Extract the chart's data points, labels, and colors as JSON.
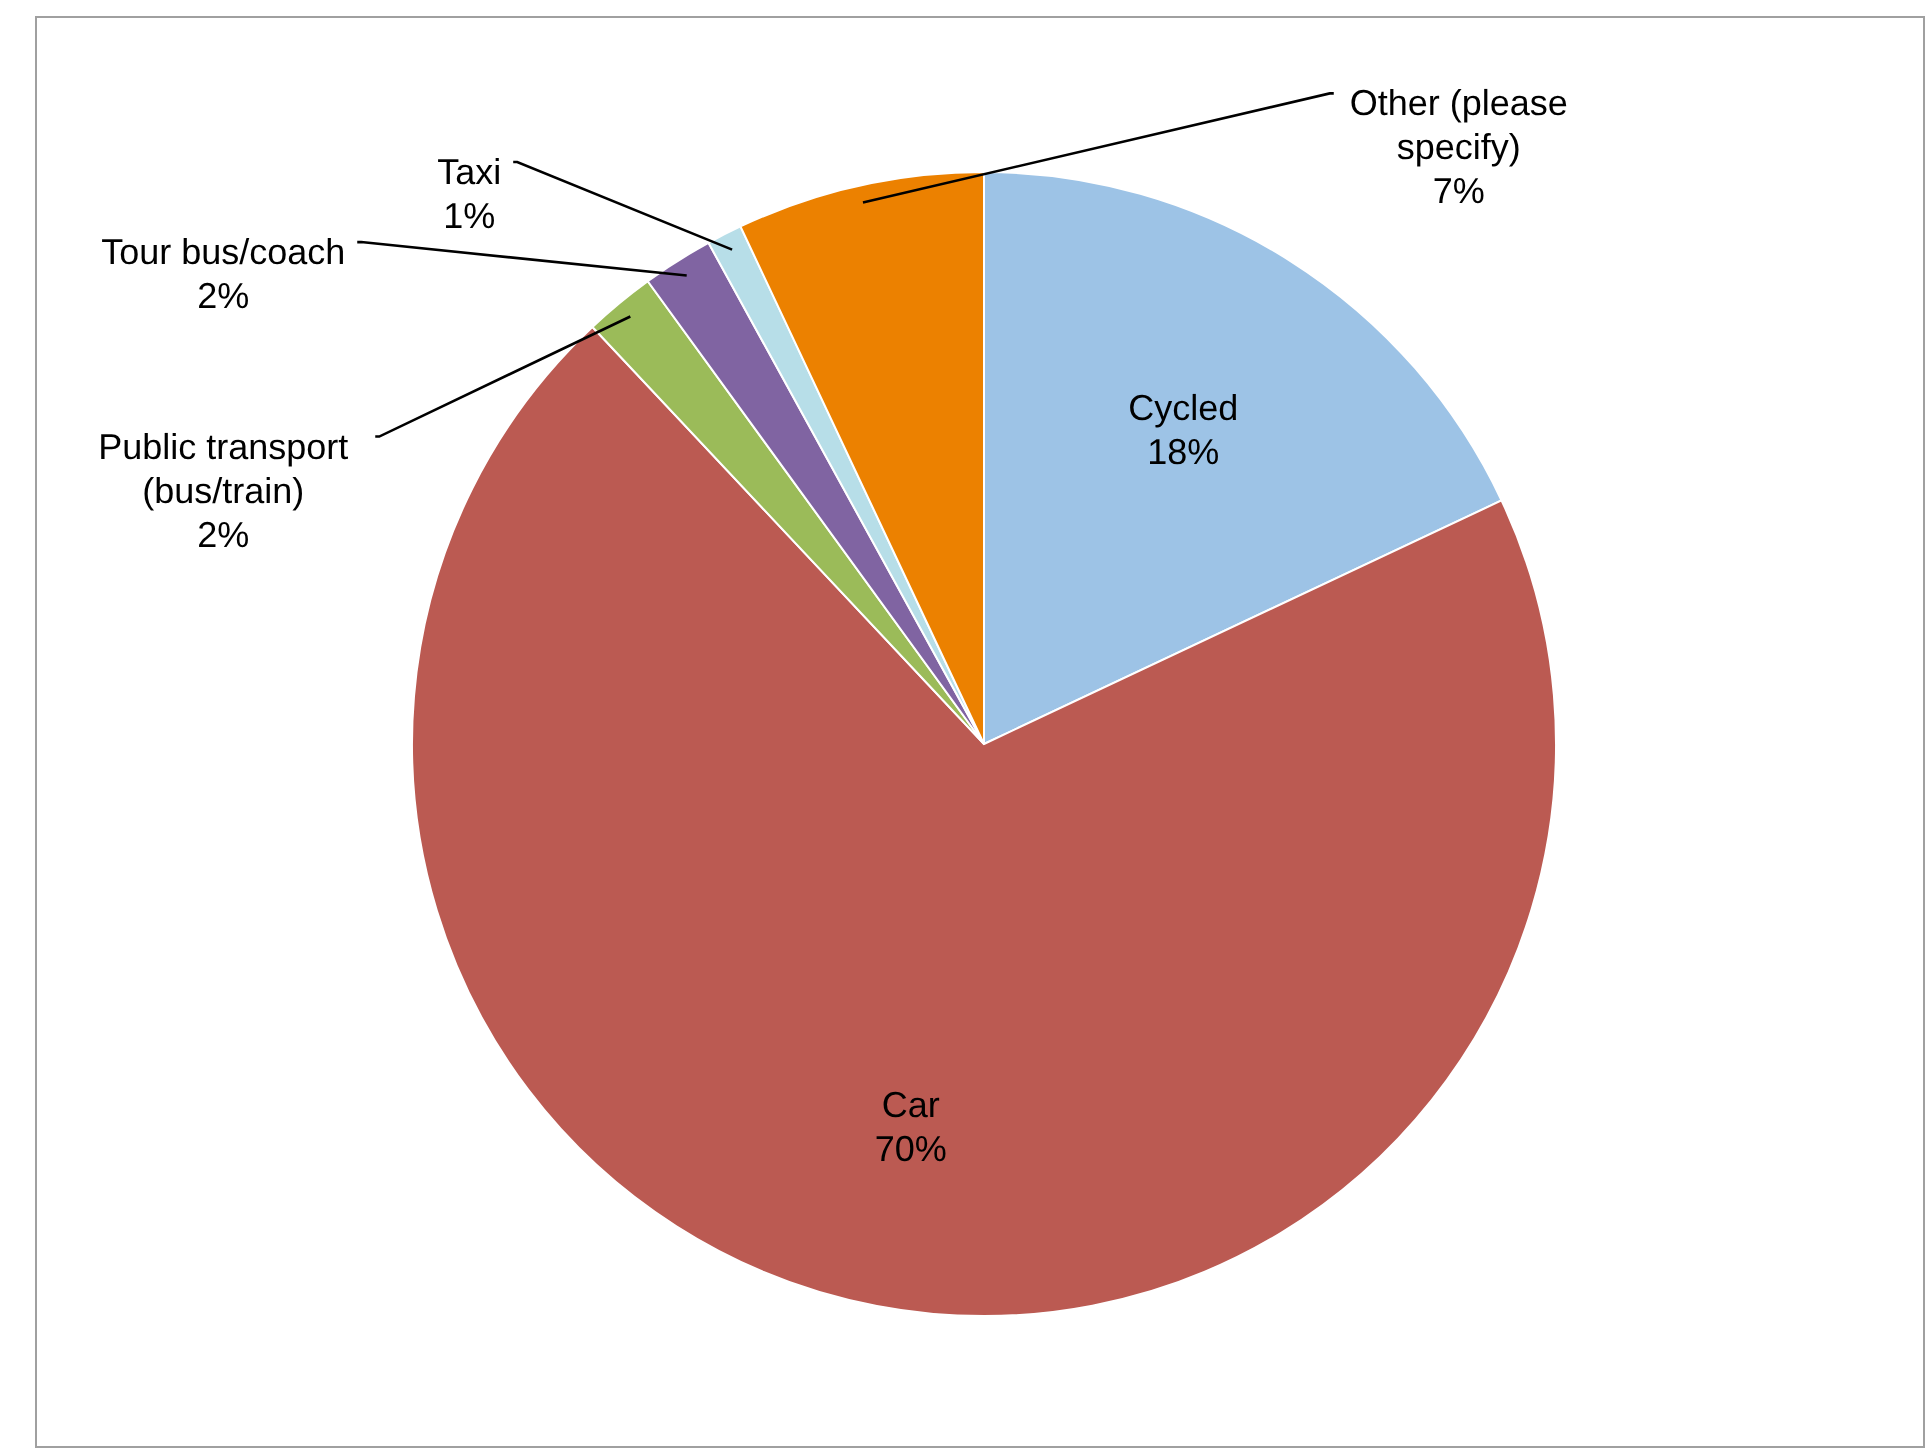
{
  "chart_data": {
    "type": "pie",
    "categories": [
      "Cycled",
      "Car",
      "Public transport (bus/train)",
      "Tour bus/coach",
      "Taxi",
      "Other (please specify)"
    ],
    "values": [
      18,
      70,
      2,
      2,
      1,
      7
    ],
    "value_labels": [
      "18%",
      "70%",
      "2%",
      "2%",
      "1%",
      "7%"
    ],
    "colors": [
      "#9dc3e6",
      "#bb5a52",
      "#9bbb59",
      "#8064a2",
      "#b7dee8",
      "#ec8100"
    ]
  }
}
